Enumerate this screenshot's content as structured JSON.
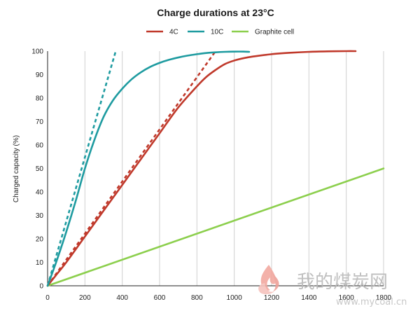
{
  "colors": {
    "series_4c": "#c0392b",
    "series_10c": "#1e9ba0",
    "series_graphite": "#8ccf4d",
    "grid": "#cfcfcf",
    "axis": "#222222"
  },
  "watermark": {
    "text": "我的煤炭网",
    "url": "www.mycoal.cn",
    "icon": "flame-logo-icon"
  },
  "chart_data": {
    "type": "line",
    "title": "Charge durations at 23°C",
    "xlabel": "",
    "ylabel": "Charged capacity (%)",
    "xlim": [
      0,
      1800
    ],
    "ylim": [
      0,
      100
    ],
    "x_ticks": [
      "0",
      "200",
      "400",
      "600",
      "800",
      "1000",
      "1200",
      "1400",
      "1600",
      "1800"
    ],
    "y_ticks": [
      "0",
      "10",
      "20",
      "30",
      "40",
      "50",
      "60",
      "70",
      "80",
      "90",
      "100"
    ],
    "grid": "vertical",
    "legend_position": "top",
    "series": [
      {
        "name": "4C",
        "color": "#c0392b",
        "x": [
          0,
          50,
          100,
          200,
          300,
          400,
          500,
          600,
          700,
          800,
          850,
          900,
          950,
          1000,
          1050,
          1100,
          1200,
          1300,
          1400,
          1500,
          1600,
          1650
        ],
        "y": [
          0,
          5,
          10,
          21,
          32,
          43,
          54,
          65,
          76,
          85,
          89,
          92,
          94.5,
          96,
          97,
          97.7,
          98.7,
          99.3,
          99.7,
          99.9,
          100,
          100
        ]
      },
      {
        "name": "10C",
        "color": "#1e9ba0",
        "x": [
          0,
          50,
          100,
          150,
          200,
          250,
          300,
          350,
          400,
          450,
          500,
          550,
          600,
          650,
          700,
          750,
          800,
          850,
          900,
          950,
          1000,
          1050,
          1080
        ],
        "y": [
          0,
          11,
          23,
          36,
          50,
          62,
          72,
          79,
          84,
          88,
          91,
          93.3,
          95,
          96.3,
          97.3,
          98.1,
          98.7,
          99.2,
          99.5,
          99.7,
          99.8,
          99.8,
          99.7
        ]
      },
      {
        "name": "Graphite cell",
        "color": "#8ccf4d",
        "x": [
          0,
          1800
        ],
        "y": [
          0,
          50
        ]
      }
    ],
    "trend_lines": [
      {
        "series": "4C",
        "style": "dashed",
        "color": "#c0392b",
        "x": [
          0,
          900
        ],
        "y": [
          0,
          100
        ]
      },
      {
        "series": "10C",
        "style": "dashed",
        "color": "#1e9ba0",
        "x": [
          0,
          365
        ],
        "y": [
          0,
          100
        ]
      }
    ]
  }
}
